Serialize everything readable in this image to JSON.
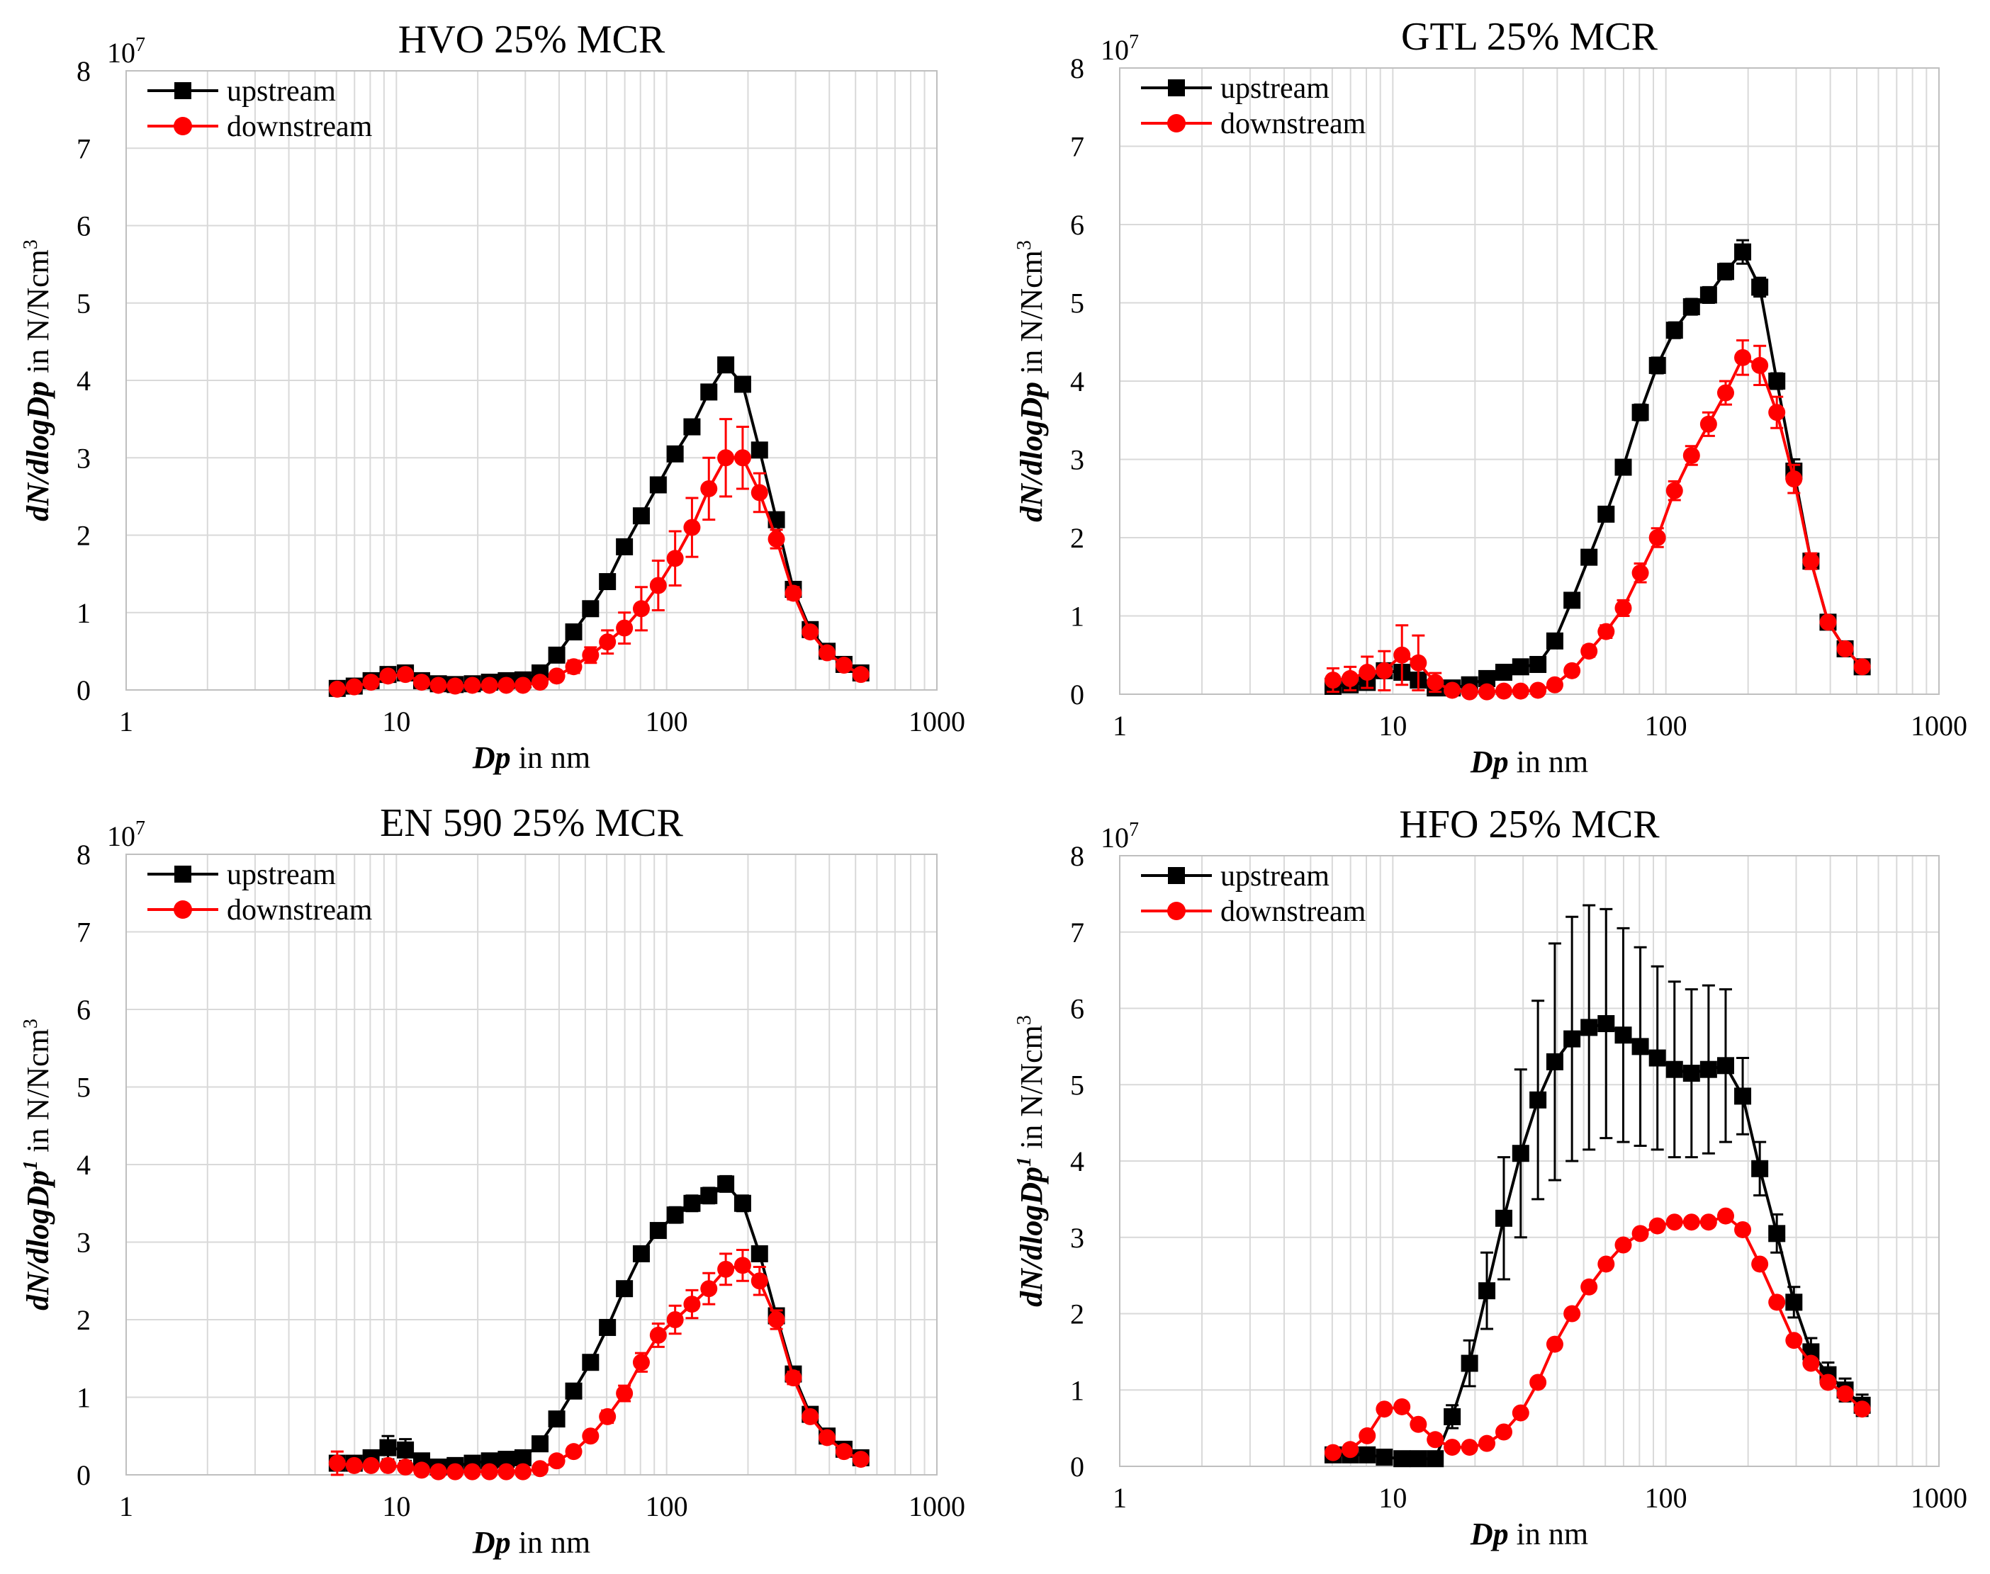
{
  "chart_data": [
    {
      "type": "line",
      "title": "HVO 25% MCR",
      "xlabel_bold": "Dp",
      "xlabel_rest": " in nm",
      "ylabel_bold": "dN/dlogDp",
      "ylabel_rest": " in N/Ncm",
      "ylabel_sup": "3",
      "scale_label": "10",
      "scale_exp": "7",
      "xscale": "log",
      "xlim": [
        1,
        1000
      ],
      "ylim": [
        0,
        8
      ],
      "xtick_labels": [
        "1",
        "10",
        "100",
        "1000"
      ],
      "ytick_labels": [
        "0",
        "1",
        "2",
        "3",
        "4",
        "5",
        "6",
        "7",
        "8"
      ],
      "legend_position": "top-left",
      "x": [
        6.04,
        6.98,
        8.06,
        9.31,
        10.8,
        12.4,
        14.3,
        16.5,
        19.1,
        22.1,
        25.5,
        29.4,
        34.0,
        39.2,
        45.3,
        52.3,
        60.4,
        69.8,
        80.6,
        93.1,
        107.5,
        124.1,
        143.3,
        165.5,
        191.1,
        220.7,
        254.8,
        294.3,
        339.8,
        392.4,
        453.2,
        523.3
      ],
      "series": [
        {
          "name": "upstream",
          "color": "#000000",
          "marker": "square",
          "values": [
            0.02,
            0.05,
            0.12,
            0.2,
            0.22,
            0.12,
            0.08,
            0.07,
            0.08,
            0.1,
            0.12,
            0.13,
            0.22,
            0.45,
            0.75,
            1.05,
            1.4,
            1.85,
            2.25,
            2.65,
            3.05,
            3.4,
            3.85,
            4.2,
            3.95,
            3.1,
            2.2,
            1.3,
            0.78,
            0.5,
            0.33,
            0.22
          ],
          "errors": [
            0.02,
            0.02,
            0.03,
            0.04,
            0.05,
            0.03,
            0.02,
            0.02,
            0.02,
            0.02,
            0.03,
            0.03,
            0.04,
            0.05,
            0.05,
            0.06,
            0.06,
            0.06,
            0.07,
            0.07,
            0.08,
            0.08,
            0.08,
            0.08,
            0.08,
            0.07,
            0.06,
            0.05,
            0.04,
            0.03,
            0.03,
            0.02
          ]
        },
        {
          "name": "downstream",
          "color": "#ff0000",
          "marker": "circle",
          "values": [
            0.01,
            0.04,
            0.1,
            0.18,
            0.2,
            0.1,
            0.06,
            0.05,
            0.06,
            0.06,
            0.06,
            0.06,
            0.1,
            0.18,
            0.3,
            0.45,
            0.62,
            0.8,
            1.05,
            1.35,
            1.7,
            2.1,
            2.6,
            3.0,
            3.0,
            2.55,
            1.95,
            1.25,
            0.75,
            0.48,
            0.32,
            0.2
          ],
          "errors": [
            0.02,
            0.02,
            0.03,
            0.04,
            0.05,
            0.03,
            0.02,
            0.02,
            0.02,
            0.02,
            0.03,
            0.03,
            0.04,
            0.06,
            0.08,
            0.1,
            0.15,
            0.2,
            0.28,
            0.32,
            0.35,
            0.38,
            0.4,
            0.5,
            0.4,
            0.25,
            0.12,
            0.08,
            0.06,
            0.05,
            0.04,
            0.03
          ]
        }
      ]
    },
    {
      "type": "line",
      "title": "GTL 25% MCR",
      "xlabel_bold": "Dp",
      "xlabel_rest": " in nm",
      "ylabel_bold": "dN/dlogDp",
      "ylabel_rest": " in N/Ncm",
      "ylabel_sup": "3",
      "scale_label": "10",
      "scale_exp": "7",
      "xscale": "log",
      "xlim": [
        1,
        1000
      ],
      "ylim": [
        0,
        8
      ],
      "xtick_labels": [
        "1",
        "10",
        "100",
        "1000"
      ],
      "ytick_labels": [
        "0",
        "1",
        "2",
        "3",
        "4",
        "5",
        "6",
        "7",
        "8"
      ],
      "legend_position": "top-left",
      "x": [
        6.04,
        6.98,
        8.06,
        9.31,
        10.8,
        12.4,
        14.3,
        16.5,
        19.1,
        22.1,
        25.5,
        29.4,
        34.0,
        39.2,
        45.3,
        52.3,
        60.4,
        69.8,
        80.6,
        93.1,
        107.5,
        124.1,
        143.3,
        165.5,
        191.1,
        220.7,
        254.8,
        294.3,
        339.8,
        392.4,
        453.2,
        523.3
      ],
      "series": [
        {
          "name": "upstream",
          "color": "#000000",
          "marker": "square",
          "values": [
            0.1,
            0.12,
            0.15,
            0.3,
            0.28,
            0.18,
            0.08,
            0.08,
            0.12,
            0.2,
            0.28,
            0.35,
            0.38,
            0.68,
            1.2,
            1.75,
            2.3,
            2.9,
            3.6,
            4.2,
            4.65,
            4.95,
            5.1,
            5.4,
            5.65,
            5.2,
            4.0,
            2.85,
            1.7,
            0.92,
            0.58,
            0.35
          ],
          "errors": [
            0.04,
            0.04,
            0.05,
            0.08,
            0.07,
            0.05,
            0.03,
            0.03,
            0.03,
            0.04,
            0.04,
            0.04,
            0.05,
            0.06,
            0.07,
            0.08,
            0.08,
            0.09,
            0.1,
            0.1,
            0.1,
            0.1,
            0.1,
            0.1,
            0.15,
            0.12,
            0.1,
            0.15,
            0.08,
            0.06,
            0.05,
            0.04
          ]
        },
        {
          "name": "downstream",
          "color": "#ff0000",
          "marker": "circle",
          "values": [
            0.18,
            0.2,
            0.28,
            0.3,
            0.5,
            0.4,
            0.15,
            0.05,
            0.03,
            0.03,
            0.04,
            0.04,
            0.05,
            0.12,
            0.3,
            0.55,
            0.8,
            1.1,
            1.55,
            2.0,
            2.6,
            3.05,
            3.45,
            3.85,
            4.3,
            4.2,
            3.6,
            2.75,
            1.7,
            0.92,
            0.58,
            0.35
          ],
          "errors": [
            0.15,
            0.15,
            0.2,
            0.25,
            0.38,
            0.35,
            0.12,
            0.04,
            0.03,
            0.03,
            0.03,
            0.03,
            0.04,
            0.05,
            0.06,
            0.07,
            0.08,
            0.1,
            0.12,
            0.12,
            0.12,
            0.12,
            0.15,
            0.15,
            0.22,
            0.25,
            0.2,
            0.18,
            0.1,
            0.06,
            0.05,
            0.04
          ]
        }
      ]
    },
    {
      "type": "line",
      "title": "EN 590 25% MCR",
      "xlabel_bold": "Dp",
      "xlabel_rest": " in nm",
      "ylabel_bold": "dN/dlogDp",
      "ylabel_bold_sup": "1",
      "ylabel_rest": " in N/Ncm",
      "ylabel_sup": "3",
      "scale_label": "10",
      "scale_exp": "7",
      "xscale": "log",
      "xlim": [
        1,
        1000
      ],
      "ylim": [
        0,
        8
      ],
      "xtick_labels": [
        "1",
        "10",
        "100",
        "1000"
      ],
      "ytick_labels": [
        "0",
        "1",
        "2",
        "3",
        "4",
        "5",
        "6",
        "7",
        "8"
      ],
      "legend_position": "top-left",
      "x": [
        6.04,
        6.98,
        8.06,
        9.31,
        10.8,
        12.4,
        14.3,
        16.5,
        19.1,
        22.1,
        25.5,
        29.4,
        34.0,
        39.2,
        45.3,
        52.3,
        60.4,
        69.8,
        80.6,
        93.1,
        107.5,
        124.1,
        143.3,
        165.5,
        191.1,
        220.7,
        254.8,
        294.3,
        339.8,
        392.4,
        453.2,
        523.3
      ],
      "series": [
        {
          "name": "upstream",
          "color": "#000000",
          "marker": "square",
          "values": [
            0.15,
            0.15,
            0.22,
            0.35,
            0.32,
            0.18,
            0.1,
            0.12,
            0.15,
            0.18,
            0.2,
            0.22,
            0.4,
            0.72,
            1.08,
            1.45,
            1.9,
            2.4,
            2.85,
            3.15,
            3.35,
            3.5,
            3.6,
            3.75,
            3.5,
            2.85,
            2.05,
            1.3,
            0.78,
            0.5,
            0.33,
            0.22
          ],
          "errors": [
            0.08,
            0.06,
            0.08,
            0.15,
            0.14,
            0.06,
            0.04,
            0.04,
            0.04,
            0.04,
            0.05,
            0.05,
            0.06,
            0.06,
            0.07,
            0.07,
            0.08,
            0.08,
            0.09,
            0.09,
            0.1,
            0.1,
            0.1,
            0.1,
            0.1,
            0.09,
            0.08,
            0.06,
            0.05,
            0.04,
            0.03,
            0.03
          ]
        },
        {
          "name": "downstream",
          "color": "#ff0000",
          "marker": "circle",
          "values": [
            0.15,
            0.12,
            0.12,
            0.12,
            0.1,
            0.06,
            0.04,
            0.04,
            0.04,
            0.04,
            0.04,
            0.04,
            0.08,
            0.18,
            0.3,
            0.5,
            0.75,
            1.05,
            1.45,
            1.8,
            2.0,
            2.2,
            2.4,
            2.65,
            2.7,
            2.5,
            2.0,
            1.25,
            0.75,
            0.48,
            0.3,
            0.2
          ],
          "errors": [
            0.15,
            0.06,
            0.05,
            0.05,
            0.04,
            0.03,
            0.02,
            0.02,
            0.02,
            0.02,
            0.02,
            0.02,
            0.03,
            0.04,
            0.05,
            0.06,
            0.08,
            0.1,
            0.12,
            0.15,
            0.18,
            0.18,
            0.2,
            0.2,
            0.2,
            0.18,
            0.12,
            0.08,
            0.05,
            0.04,
            0.03,
            0.03
          ]
        }
      ]
    },
    {
      "type": "line",
      "title": "HFO 25% MCR",
      "xlabel_bold": "Dp",
      "xlabel_rest": " in nm",
      "ylabel_bold": "dN/dlogDp",
      "ylabel_bold_sup": "1",
      "ylabel_rest": " in N/Ncm",
      "ylabel_sup": "3",
      "scale_label": "10",
      "scale_exp": "7",
      "xscale": "log",
      "xlim": [
        1,
        1000
      ],
      "ylim": [
        0,
        8
      ],
      "xtick_labels": [
        "1",
        "10",
        "100",
        "1000"
      ],
      "ytick_labels": [
        "0",
        "1",
        "2",
        "3",
        "4",
        "5",
        "6",
        "7",
        "8"
      ],
      "legend_position": "top-left",
      "x": [
        6.04,
        6.98,
        8.06,
        9.31,
        10.8,
        12.4,
        14.3,
        16.5,
        19.1,
        22.1,
        25.5,
        29.4,
        34.0,
        39.2,
        45.3,
        52.3,
        60.4,
        69.8,
        80.6,
        93.1,
        107.5,
        124.1,
        143.3,
        165.5,
        191.1,
        220.7,
        254.8,
        294.3,
        339.8,
        392.4,
        453.2,
        523.3
      ],
      "series": [
        {
          "name": "upstream",
          "color": "#000000",
          "marker": "square",
          "values": [
            0.15,
            0.15,
            0.15,
            0.12,
            0.1,
            0.1,
            0.1,
            0.65,
            1.35,
            2.3,
            3.25,
            4.1,
            4.8,
            5.3,
            5.6,
            5.75,
            5.8,
            5.65,
            5.5,
            5.35,
            5.2,
            5.15,
            5.2,
            5.25,
            4.85,
            3.9,
            3.05,
            2.15,
            1.5,
            1.2,
            1.0,
            0.8
          ],
          "errors": [
            0.04,
            0.04,
            0.04,
            0.03,
            0.03,
            0.03,
            0.03,
            0.15,
            0.3,
            0.5,
            0.8,
            1.1,
            1.3,
            1.55,
            1.6,
            1.6,
            1.5,
            1.4,
            1.3,
            1.2,
            1.15,
            1.1,
            1.1,
            1.0,
            0.5,
            0.35,
            0.25,
            0.2,
            0.18,
            0.16,
            0.15,
            0.14
          ]
        },
        {
          "name": "downstream",
          "color": "#ff0000",
          "marker": "circle",
          "values": [
            0.18,
            0.22,
            0.4,
            0.75,
            0.78,
            0.55,
            0.35,
            0.25,
            0.25,
            0.3,
            0.45,
            0.7,
            1.1,
            1.6,
            2.0,
            2.35,
            2.65,
            2.9,
            3.05,
            3.15,
            3.2,
            3.2,
            3.2,
            3.28,
            3.1,
            2.65,
            2.15,
            1.65,
            1.35,
            1.1,
            0.95,
            0.75
          ],
          "errors": [
            0.03,
            0.03,
            0.04,
            0.06,
            0.06,
            0.05,
            0.04,
            0.03,
            0.03,
            0.03,
            0.04,
            0.05,
            0.05,
            0.05,
            0.05,
            0.05,
            0.05,
            0.05,
            0.05,
            0.05,
            0.05,
            0.05,
            0.05,
            0.05,
            0.05,
            0.05,
            0.05,
            0.05,
            0.05,
            0.05,
            0.05,
            0.05
          ]
        }
      ]
    }
  ]
}
